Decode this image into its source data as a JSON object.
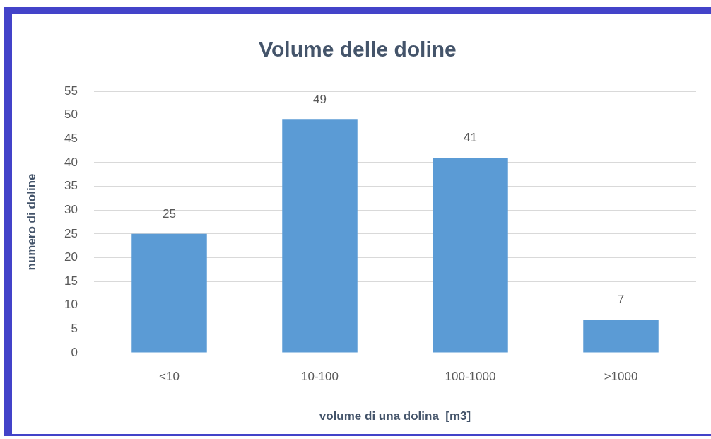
{
  "chart_data": {
    "type": "bar",
    "title": "Volume delle doline",
    "xlabel": "volume di una dolina  [m3]",
    "ylabel": "numero di doline",
    "categories": [
      "<10",
      "10-100",
      "100-1000",
      ">1000"
    ],
    "values": [
      25,
      49,
      41,
      7
    ],
    "color": "#5b9bd5",
    "ylim": [
      0,
      55
    ],
    "yticks": [
      0,
      5,
      10,
      15,
      20,
      25,
      30,
      35,
      40,
      45,
      50,
      55
    ],
    "grid": "y",
    "data_labels": true
  }
}
